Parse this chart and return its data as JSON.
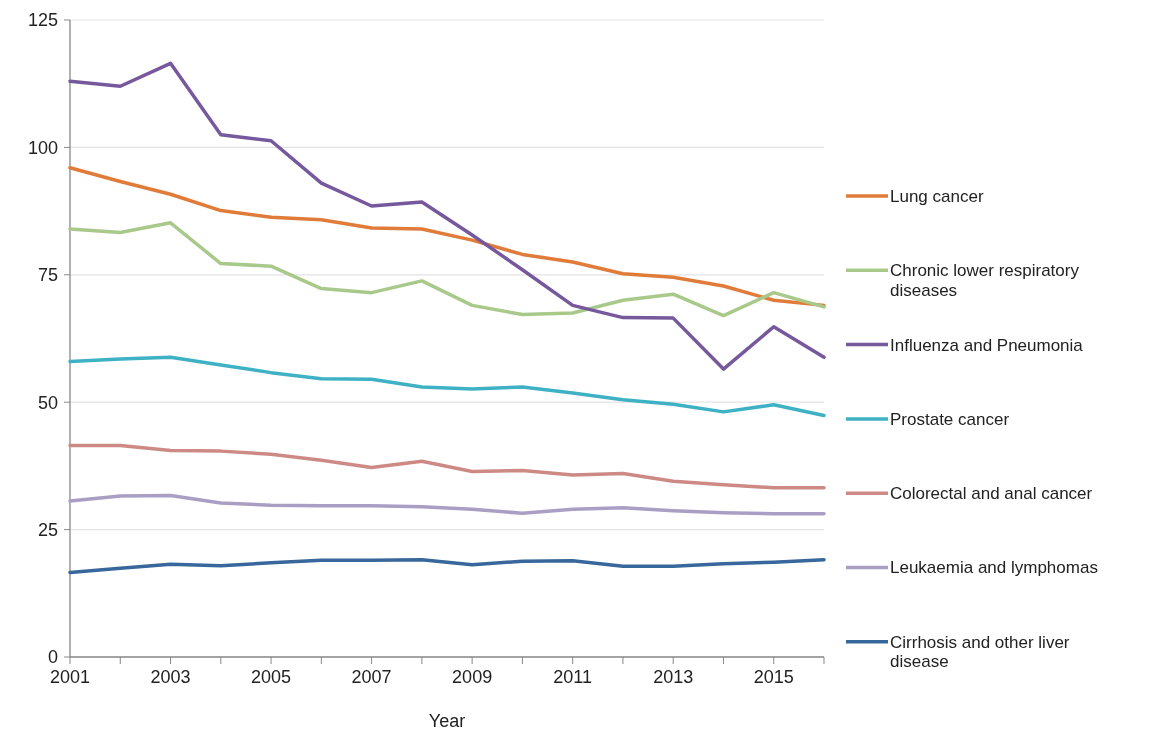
{
  "chart_data": {
    "type": "line",
    "xlabel": "Year",
    "x": [
      2001,
      2002,
      2003,
      2004,
      2005,
      2006,
      2007,
      2008,
      2009,
      2010,
      2011,
      2012,
      2013,
      2014,
      2015,
      2016
    ],
    "xlim": [
      2001,
      2016
    ],
    "xticks": [
      2001,
      {
        "value": 2002,
        "label": null
      },
      2003,
      {
        "value": 2004,
        "label": null
      },
      2005,
      {
        "value": 2006,
        "label": null
      },
      2007,
      {
        "value": 2008,
        "label": null
      },
      2009,
      {
        "value": 2010,
        "label": null
      },
      2011,
      {
        "value": 2012,
        "label": null
      },
      2013,
      {
        "value": 2014,
        "label": null
      },
      2015,
      {
        "value": 2016,
        "label": null
      }
    ],
    "ylim": [
      0,
      125
    ],
    "yticks": [
      0,
      25,
      50,
      75,
      100,
      125
    ],
    "grid": "y",
    "legend": "right",
    "marker": "none",
    "line_style": "solid",
    "series": [
      {
        "name": "Lung cancer",
        "color": "#e07b39",
        "values": [
          96,
          93.3,
          90.8,
          87.6,
          86.3,
          85.8,
          84.2,
          84,
          81.8,
          79,
          77.5,
          75.2,
          74.5,
          72.8,
          70,
          69
        ]
      },
      {
        "name": "Chronic lower respiratory diseases",
        "color": "#a9c98a",
        "values": [
          84,
          83.3,
          85.2,
          77.2,
          76.7,
          72.3,
          71.5,
          73.8,
          69,
          67.2,
          67.5,
          70,
          71.2,
          67,
          71.5,
          68.7
        ]
      },
      {
        "name": "Influenza and Pneumonia",
        "color": "#76589c",
        "values": [
          113,
          112,
          116.5,
          102.5,
          101.3,
          93,
          88.5,
          89.3,
          82.8,
          76,
          69,
          66.6,
          66.5,
          56.5,
          64.8,
          58.8
        ]
      },
      {
        "name": "Prostate cancer",
        "color": "#3fb1c5",
        "values": [
          58,
          58.5,
          58.8,
          57.3,
          55.8,
          54.6,
          54.5,
          53,
          52.6,
          53,
          51.8,
          50.5,
          49.6,
          48.1,
          49.5,
          47.4
        ]
      },
      {
        "name": "Colorectal and anal cancer",
        "color": "#cd8a85",
        "values": [
          41.5,
          41.5,
          40.5,
          40.4,
          39.8,
          38.6,
          37.2,
          38.4,
          36.4,
          36.6,
          35.7,
          36,
          34.5,
          33.8,
          33.2,
          33.2
        ]
      },
      {
        "name": "Leukaemia and lymphomas",
        "color": "#a99fc4",
        "values": [
          30.6,
          31.6,
          31.7,
          30.2,
          29.8,
          29.7,
          29.7,
          29.5,
          29,
          28.2,
          29,
          29.3,
          28.7,
          28.3,
          28.1,
          28.1
        ]
      },
      {
        "name": "Cirrhosis and other liver disease",
        "color": "#37679b",
        "values": [
          16.6,
          17.4,
          18.2,
          17.9,
          18.5,
          19,
          19,
          19.1,
          18.1,
          18.8,
          18.9,
          17.8,
          17.8,
          18.3,
          18.6,
          19.1
        ]
      }
    ]
  }
}
